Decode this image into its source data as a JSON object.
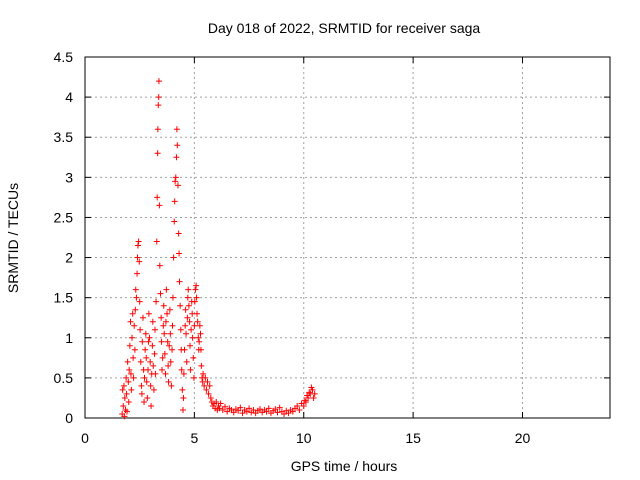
{
  "chart_data": {
    "type": "scatter",
    "title": "Day 018 of 2022, SRMTID for receiver saga",
    "xlabel": "GPS time / hours",
    "ylabel": "SRMTID / TECUs",
    "xlim": [
      0,
      24
    ],
    "ylim": [
      0,
      4.5
    ],
    "x_ticks": [
      0,
      5,
      10,
      15,
      20
    ],
    "x_tick_labels": [
      "0",
      "5",
      "10",
      "15",
      "20"
    ],
    "y_ticks": [
      0,
      0.5,
      1,
      1.5,
      2,
      2.5,
      3,
      3.5,
      4,
      4.5
    ],
    "y_tick_labels": [
      "0",
      "0.5",
      "1",
      "1.5",
      "2",
      "2.5",
      "3",
      "3.5",
      "4",
      "4.5"
    ],
    "grid": true,
    "marker": "+",
    "color": "#ff0000",
    "series": [
      {
        "name": "SRMTID",
        "points": [
          [
            1.7,
            0.05
          ],
          [
            1.72,
            0.35
          ],
          [
            1.75,
            0.15
          ],
          [
            1.78,
            0.4
          ],
          [
            1.8,
            0.02
          ],
          [
            1.82,
            0.25
          ],
          [
            1.85,
            0.1
          ],
          [
            1.88,
            0.5
          ],
          [
            1.9,
            0.3
          ],
          [
            1.92,
            0.08
          ],
          [
            1.95,
            0.7
          ],
          [
            1.98,
            0.45
          ],
          [
            2.0,
            0.2
          ],
          [
            2.02,
            0.6
          ],
          [
            2.05,
            0.9
          ],
          [
            2.08,
            1.2
          ],
          [
            2.1,
            0.55
          ],
          [
            2.12,
            0.35
          ],
          [
            2.15,
            1.0
          ],
          [
            2.18,
            1.3
          ],
          [
            2.2,
            0.75
          ],
          [
            2.22,
            0.5
          ],
          [
            2.25,
            1.15
          ],
          [
            2.28,
            0.85
          ],
          [
            2.3,
            1.35
          ],
          [
            2.32,
            1.6
          ],
          [
            2.35,
            1.5
          ],
          [
            2.38,
            1.8
          ],
          [
            2.4,
            2.0
          ],
          [
            2.42,
            2.15
          ],
          [
            2.45,
            2.2
          ],
          [
            2.48,
            1.95
          ],
          [
            2.5,
            1.45
          ],
          [
            2.52,
            1.1
          ],
          [
            2.55,
            0.7
          ],
          [
            2.58,
            0.4
          ],
          [
            2.6,
            0.3
          ],
          [
            2.62,
            0.95
          ],
          [
            2.65,
            1.25
          ],
          [
            2.68,
            0.6
          ],
          [
            2.7,
            0.2
          ],
          [
            2.72,
            0.5
          ],
          [
            2.75,
            0.85
          ],
          [
            2.78,
            1.05
          ],
          [
            2.8,
            0.75
          ],
          [
            2.82,
            0.45
          ],
          [
            2.85,
            0.25
          ],
          [
            2.88,
            0.6
          ],
          [
            2.9,
            0.95
          ],
          [
            2.92,
            1.3
          ],
          [
            2.95,
            1.0
          ],
          [
            2.98,
            0.7
          ],
          [
            3.0,
            0.4
          ],
          [
            3.02,
            0.15
          ],
          [
            3.05,
            0.55
          ],
          [
            3.08,
            0.9
          ],
          [
            3.1,
            1.2
          ],
          [
            3.12,
            0.65
          ],
          [
            3.15,
            0.35
          ],
          [
            3.18,
            0.8
          ],
          [
            3.2,
            1.1
          ],
          [
            3.22,
            0.55
          ],
          [
            3.25,
            1.45
          ],
          [
            3.28,
            2.2
          ],
          [
            3.3,
            2.75
          ],
          [
            3.32,
            3.3
          ],
          [
            3.33,
            3.6
          ],
          [
            3.35,
            3.9
          ],
          [
            3.37,
            4.0
          ],
          [
            3.38,
            4.2
          ],
          [
            3.4,
            2.65
          ],
          [
            3.42,
            1.9
          ],
          [
            3.45,
            1.55
          ],
          [
            3.48,
            1.25
          ],
          [
            3.5,
            0.95
          ],
          [
            3.52,
            0.6
          ],
          [
            3.55,
            0.75
          ],
          [
            3.58,
            1.15
          ],
          [
            3.6,
            1.4
          ],
          [
            3.62,
            1.05
          ],
          [
            3.65,
            0.8
          ],
          [
            3.68,
            0.55
          ],
          [
            3.7,
            1.2
          ],
          [
            3.72,
            1.6
          ],
          [
            3.75,
            1.3
          ],
          [
            3.78,
            0.95
          ],
          [
            3.8,
            0.65
          ],
          [
            3.82,
            0.45
          ],
          [
            3.85,
            0.9
          ],
          [
            3.88,
            1.35
          ],
          [
            3.9,
            1.05
          ],
          [
            3.92,
            0.7
          ],
          [
            3.95,
            0.4
          ],
          [
            3.98,
            0.85
          ],
          [
            4.0,
            1.15
          ],
          [
            4.02,
            1.5
          ],
          [
            4.05,
            2.0
          ],
          [
            4.08,
            2.45
          ],
          [
            4.1,
            2.7
          ],
          [
            4.12,
            2.95
          ],
          [
            4.15,
            3.0
          ],
          [
            4.18,
            3.25
          ],
          [
            4.2,
            3.6
          ],
          [
            4.22,
            3.4
          ],
          [
            4.25,
            2.9
          ],
          [
            4.28,
            2.3
          ],
          [
            4.3,
            2.05
          ],
          [
            4.32,
            1.7
          ],
          [
            4.35,
            1.4
          ],
          [
            4.38,
            1.1
          ],
          [
            4.4,
            0.85
          ],
          [
            4.42,
            0.6
          ],
          [
            4.45,
            0.35
          ],
          [
            4.48,
            0.1
          ],
          [
            4.5,
            0.25
          ],
          [
            4.52,
            0.55
          ],
          [
            4.55,
            0.85
          ],
          [
            4.58,
            1.15
          ],
          [
            4.6,
            1.35
          ],
          [
            4.62,
            1.05
          ],
          [
            4.65,
            0.7
          ],
          [
            4.68,
            1.25
          ],
          [
            4.7,
            1.5
          ],
          [
            4.72,
            1.6
          ],
          [
            4.75,
            1.4
          ],
          [
            4.78,
            1.2
          ],
          [
            4.8,
            0.9
          ],
          [
            4.82,
            0.6
          ],
          [
            4.85,
            1.1
          ],
          [
            4.88,
            1.45
          ],
          [
            4.9,
            1.3
          ],
          [
            4.92,
            1.0
          ],
          [
            4.95,
            0.75
          ],
          [
            4.98,
            0.5
          ],
          [
            5.0,
            1.15
          ],
          [
            5.02,
            1.45
          ],
          [
            5.05,
            1.6
          ],
          [
            5.08,
            1.65
          ],
          [
            5.1,
            1.5
          ],
          [
            5.12,
            1.3
          ],
          [
            5.15,
            1.2
          ],
          [
            5.18,
            1.0
          ],
          [
            5.2,
            0.85
          ],
          [
            5.22,
            0.95
          ],
          [
            5.25,
            1.15
          ],
          [
            5.28,
            1.05
          ],
          [
            5.3,
            0.85
          ],
          [
            5.32,
            0.65
          ],
          [
            5.35,
            0.5
          ],
          [
            5.38,
            0.45
          ],
          [
            5.4,
            0.55
          ],
          [
            5.45,
            0.4
          ],
          [
            5.5,
            0.5
          ],
          [
            5.55,
            0.35
          ],
          [
            5.6,
            0.45
          ],
          [
            5.65,
            0.3
          ],
          [
            5.7,
            0.4
          ],
          [
            5.75,
            0.25
          ],
          [
            5.8,
            0.2
          ],
          [
            5.85,
            0.15
          ],
          [
            5.9,
            0.18
          ],
          [
            5.95,
            0.12
          ],
          [
            6.0,
            0.2
          ],
          [
            6.05,
            0.1
          ],
          [
            6.1,
            0.15
          ],
          [
            6.15,
            0.12
          ],
          [
            6.2,
            0.18
          ],
          [
            6.3,
            0.1
          ],
          [
            6.4,
            0.14
          ],
          [
            6.5,
            0.08
          ],
          [
            6.6,
            0.12
          ],
          [
            6.7,
            0.1
          ],
          [
            6.8,
            0.07
          ],
          [
            6.9,
            0.11
          ],
          [
            7.0,
            0.09
          ],
          [
            7.1,
            0.13
          ],
          [
            7.2,
            0.06
          ],
          [
            7.3,
            0.1
          ],
          [
            7.4,
            0.08
          ],
          [
            7.5,
            0.12
          ],
          [
            7.6,
            0.07
          ],
          [
            7.7,
            0.1
          ],
          [
            7.8,
            0.06
          ],
          [
            7.9,
            0.09
          ],
          [
            8.0,
            0.11
          ],
          [
            8.1,
            0.07
          ],
          [
            8.2,
            0.1
          ],
          [
            8.3,
            0.08
          ],
          [
            8.4,
            0.12
          ],
          [
            8.5,
            0.06
          ],
          [
            8.6,
            0.09
          ],
          [
            8.7,
            0.11
          ],
          [
            8.8,
            0.07
          ],
          [
            8.9,
            0.13
          ],
          [
            9.0,
            0.08
          ],
          [
            9.1,
            0.05
          ],
          [
            9.2,
            0.09
          ],
          [
            9.3,
            0.06
          ],
          [
            9.4,
            0.1
          ],
          [
            9.5,
            0.08
          ],
          [
            9.6,
            0.12
          ],
          [
            9.7,
            0.15
          ],
          [
            9.8,
            0.1
          ],
          [
            9.9,
            0.18
          ],
          [
            10.0,
            0.15
          ],
          [
            10.05,
            0.22
          ],
          [
            10.1,
            0.2
          ],
          [
            10.15,
            0.28
          ],
          [
            10.2,
            0.25
          ],
          [
            10.25,
            0.32
          ],
          [
            10.3,
            0.3
          ],
          [
            10.35,
            0.38
          ],
          [
            10.4,
            0.35
          ],
          [
            10.45,
            0.25
          ],
          [
            10.5,
            0.3
          ]
        ]
      }
    ]
  }
}
